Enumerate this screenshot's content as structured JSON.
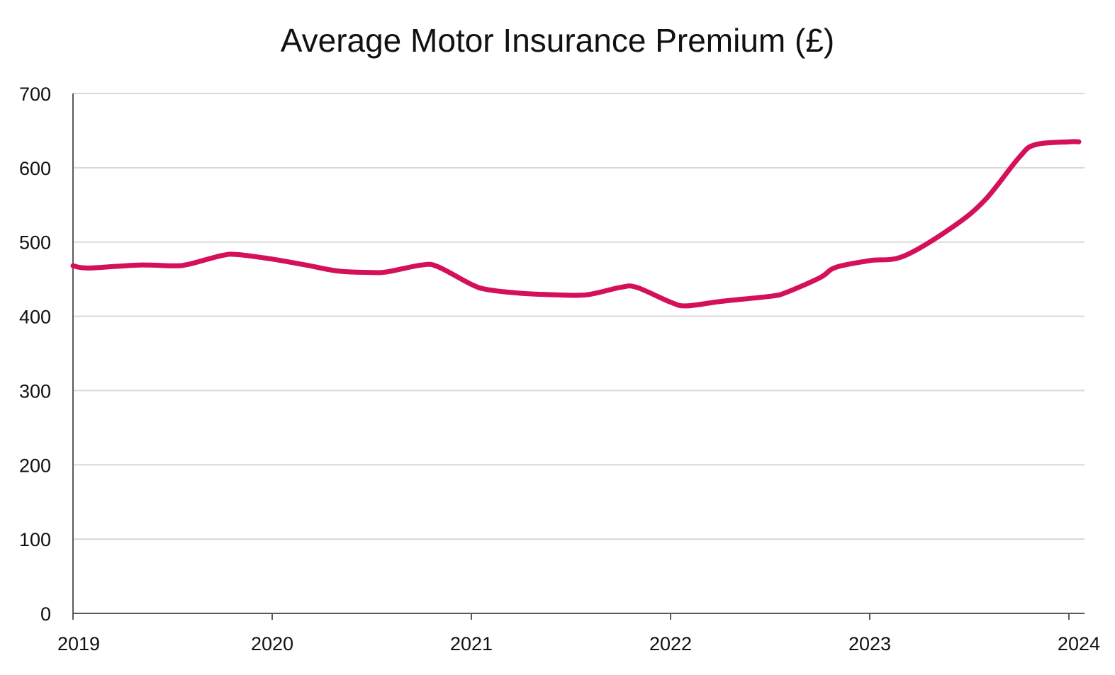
{
  "chart_data": {
    "type": "line",
    "title": "Average Motor Insurance Premium (£)",
    "xlabel": "",
    "ylabel": "",
    "xlim": [
      2019,
      2024.08
    ],
    "ylim": [
      0,
      700
    ],
    "x_ticks": [
      {
        "value": 2019,
        "label": "2019"
      },
      {
        "value": 2020,
        "label": "2020"
      },
      {
        "value": 2021,
        "label": "2021"
      },
      {
        "value": 2022,
        "label": "2022"
      },
      {
        "value": 2023,
        "label": "2023"
      },
      {
        "value": 2024,
        "label": "2024"
      }
    ],
    "y_ticks": [
      {
        "value": 0,
        "label": "0"
      },
      {
        "value": 100,
        "label": "100"
      },
      {
        "value": 200,
        "label": "200"
      },
      {
        "value": 300,
        "label": "300"
      },
      {
        "value": 400,
        "label": "400"
      },
      {
        "value": 500,
        "label": "500"
      },
      {
        "value": 600,
        "label": "600"
      },
      {
        "value": 700,
        "label": "700"
      }
    ],
    "grid": "horizontal",
    "legend": "none",
    "colors": {
      "line": "#d5105b",
      "grid": "#d9d9d9",
      "axis": "#595959",
      "text": "#111111"
    },
    "series": [
      {
        "x": [
          2019.0,
          2019.08,
          2019.33,
          2019.5,
          2019.58,
          2019.75,
          2019.83,
          2020.0,
          2020.17,
          2020.33,
          2020.5,
          2020.58,
          2020.75,
          2020.83,
          2021.0,
          2021.08,
          2021.25,
          2021.42,
          2021.58,
          2021.75,
          2021.83,
          2022.0,
          2022.08,
          2022.25,
          2022.5,
          2022.58,
          2022.75,
          2022.83,
          2023.0,
          2023.17,
          2023.42,
          2023.58,
          2023.75,
          2023.83,
          2024.0,
          2024.05
        ],
        "y": [
          468,
          465,
          469,
          468,
          470,
          482,
          483,
          477,
          469,
          461,
          459,
          460,
          469,
          467,
          443,
          436,
          431,
          429,
          429,
          439,
          439,
          419,
          414,
          420,
          427,
          432,
          452,
          466,
          475,
          481,
          521,
          557,
          614,
          631,
          635,
          635
        ]
      }
    ]
  }
}
